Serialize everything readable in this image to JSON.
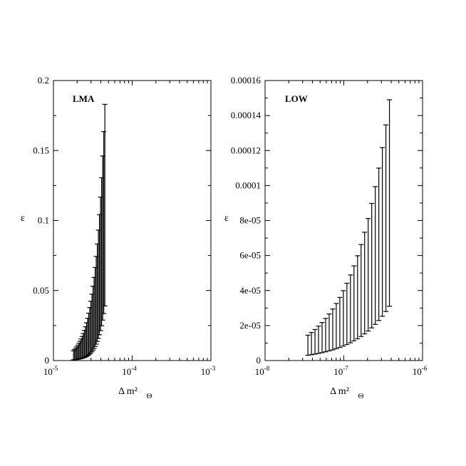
{
  "chart_data": [
    {
      "type": "errorbar",
      "panel_label": "LMA",
      "xlabel": "Δ m²",
      "xlabel_sub": "Θ",
      "ylabel": "ε",
      "xscale": "log",
      "xlim": [
        1e-05,
        0.001
      ],
      "ylim": [
        0,
        0.2
      ],
      "x_ticks": [
        {
          "base": "10",
          "exp": "-5",
          "value": 1e-05
        },
        {
          "base": "10",
          "exp": "-4",
          "value": 0.0001
        },
        {
          "base": "10",
          "exp": "-3",
          "value": 0.001
        }
      ],
      "y_ticks": [
        {
          "label": "0",
          "value": 0
        },
        {
          "label": "0.05",
          "value": 0.05
        },
        {
          "label": "0.1",
          "value": 0.1
        },
        {
          "label": "0.15",
          "value": 0.15
        },
        {
          "label": "0.2",
          "value": 0.2
        }
      ],
      "x_range": [
        1.8e-05,
        4.5e-05
      ],
      "bars_lower": [
        0.0005,
        0.039
      ],
      "bars_upper": [
        0.007,
        0.183
      ],
      "n_bars": 30
    },
    {
      "type": "errorbar",
      "panel_label": "LOW",
      "xlabel": "Δ m²",
      "xlabel_sub": "Θ",
      "ylabel": "ε",
      "xscale": "log",
      "xlim": [
        1e-08,
        1e-06
      ],
      "ylim": [
        0,
        0.00016
      ],
      "x_ticks": [
        {
          "base": "10",
          "exp": "-8",
          "value": 1e-08
        },
        {
          "base": "10",
          "exp": "-7",
          "value": 1e-07
        },
        {
          "base": "10",
          "exp": "-6",
          "value": 1e-06
        }
      ],
      "y_ticks": [
        {
          "label": "0",
          "value": 0
        },
        {
          "label": "2e-05",
          "value": 2e-05
        },
        {
          "label": "4e-05",
          "value": 4e-05
        },
        {
          "label": "6e-05",
          "value": 6e-05
        },
        {
          "label": "8e-05",
          "value": 8e-05
        },
        {
          "label": "0.0001",
          "value": 0.0001
        },
        {
          "label": "0.00012",
          "value": 0.00012
        },
        {
          "label": "0.00014",
          "value": 0.00014
        },
        {
          "label": "0.00016",
          "value": 0.00016
        }
      ],
      "x_range": [
        3.5e-08,
        3.8e-07
      ],
      "bars_lower": [
        3e-06,
        3.1e-05
      ],
      "bars_upper": [
        1.45e-05,
        0.000149
      ],
      "n_bars": 24
    }
  ]
}
